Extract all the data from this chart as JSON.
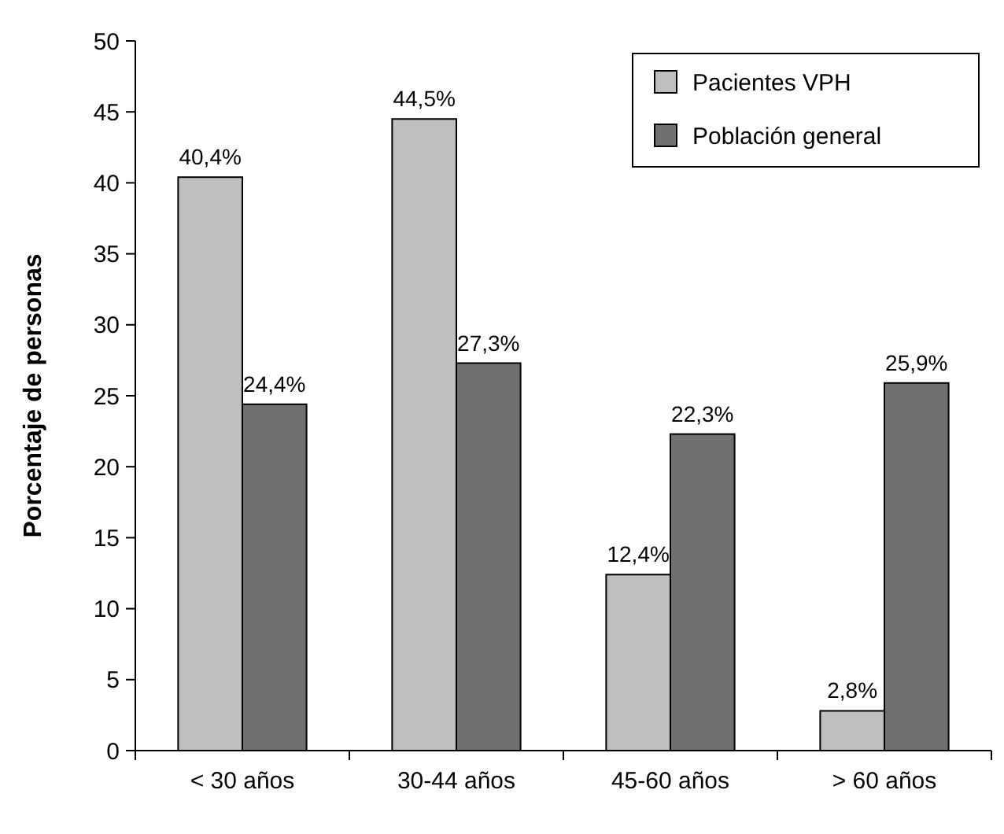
{
  "chart_data": {
    "type": "bar",
    "ylabel": "Porcentaje de personas",
    "categories": [
      "< 30 años",
      "30-44 años",
      "45-60 años",
      "> 60 años"
    ],
    "series": [
      {
        "name": "Pacientes VPH",
        "color": "#bfbfc1",
        "values": [
          40.4,
          44.5,
          12.4,
          2.8
        ],
        "value_labels": [
          "40,4%",
          "44,5%",
          "12,4%",
          "2,8%"
        ]
      },
      {
        "name": "Población general",
        "color": "#707073",
        "values": [
          24.4,
          27.3,
          22.3,
          25.9
        ],
        "value_labels": [
          "24,4%",
          "27,3%",
          "22,3%",
          "25,9%"
        ]
      }
    ],
    "ylim": [
      0,
      50
    ],
    "yticks": [
      0,
      5,
      10,
      15,
      20,
      25,
      30,
      35,
      40,
      45,
      50
    ],
    "grid": false,
    "legend": "top right"
  }
}
